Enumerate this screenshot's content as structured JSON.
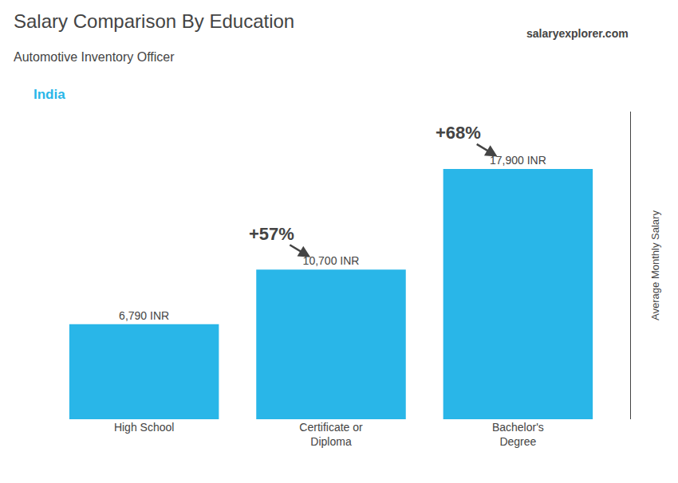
{
  "chart_data": {
    "type": "bar",
    "title": "Salary Comparison By Education",
    "subtitle": "Automotive Inventory Officer",
    "annotations": [
      "India",
      "salaryexplorer.com",
      "+57%",
      "+68%"
    ],
    "categories": [
      "High School",
      "Certificate or\nDiploma",
      "Bachelor's\nDegree"
    ],
    "values": [
      6790,
      10700,
      17900
    ],
    "value_labels": [
      "6,790 INR",
      "10,700 INR",
      "17,900 INR"
    ],
    "data_labels": true,
    "color": "#29b6e8",
    "ylabel": "Average Monthly Salary",
    "ylim": [
      0,
      22000
    ],
    "grid": false,
    "tick_labels": "x"
  }
}
